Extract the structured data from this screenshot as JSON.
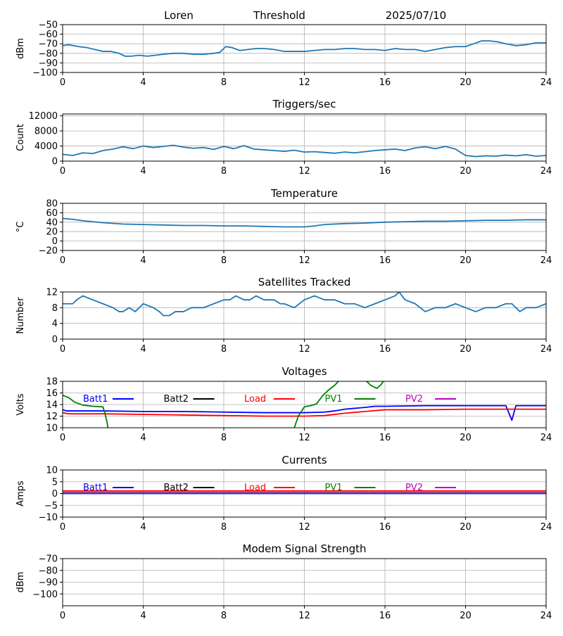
{
  "header": {
    "station": "Loren",
    "mode": "Threshold",
    "date": "2025/07/10"
  },
  "colors": {
    "series_default": "#1f77b4",
    "grid": "#b0b0b0",
    "Batt1": "#0000ff",
    "Batt2": "#000000",
    "Load": "#ff0000",
    "PV1": "#008000",
    "PV2": "#bf00bf"
  },
  "chart_data": [
    {
      "id": "signal",
      "type": "line",
      "title": "",
      "ylabel": "dBm",
      "ylim": [
        -100,
        -50
      ],
      "yticks": [
        -50,
        -60,
        -70,
        -80,
        -90,
        -100
      ],
      "xlim": [
        0,
        24
      ],
      "xticks": [
        0,
        4,
        8,
        12,
        16,
        20,
        24
      ],
      "grid": true,
      "series": [
        {
          "x": [
            0,
            0.3,
            0.8,
            1.2,
            1.6,
            2,
            2.4,
            2.8,
            3.1,
            3.4,
            3.8,
            4.2,
            4.6,
            5,
            5.5,
            6,
            6.5,
            7,
            7.5,
            7.8,
            8.1,
            8.4,
            8.8,
            9.2,
            9.6,
            10,
            10.5,
            11,
            11.5,
            12,
            12.5,
            13,
            13.5,
            14,
            14.5,
            15,
            15.5,
            16,
            16.5,
            17,
            17.5,
            18,
            18.5,
            19,
            19.5,
            20,
            20.4,
            20.8,
            21.2,
            21.6,
            22,
            22.5,
            23,
            23.5,
            24
          ],
          "y": [
            -72,
            -71,
            -73,
            -74,
            -76,
            -78,
            -78,
            -80,
            -83,
            -83,
            -82,
            -83,
            -82,
            -81,
            -80,
            -80,
            -81,
            -81,
            -80,
            -79,
            -73,
            -74,
            -77,
            -76,
            -75,
            -75,
            -76,
            -78,
            -78,
            -78,
            -77,
            -76,
            -76,
            -75,
            -75,
            -76,
            -76,
            -77,
            -75,
            -76,
            -76,
            -78,
            -76,
            -74,
            -73,
            -73,
            -70,
            -67,
            -67,
            -68,
            -70,
            -72,
            -71,
            -69,
            -69
          ]
        }
      ]
    },
    {
      "id": "triggers",
      "type": "line",
      "title": "Triggers/sec",
      "ylabel": "Count",
      "ylim": [
        0,
        12500
      ],
      "yticks": [
        0,
        4000,
        8000,
        12000
      ],
      "xlim": [
        0,
        24
      ],
      "xticks": [
        0,
        4,
        8,
        12,
        16,
        20,
        24
      ],
      "grid": true,
      "series": [
        {
          "x": [
            0,
            0.5,
            1,
            1.5,
            2,
            2.5,
            3,
            3.5,
            4,
            4.5,
            5,
            5.5,
            6,
            6.5,
            7,
            7.5,
            8,
            8.5,
            9,
            9.5,
            10,
            10.5,
            11,
            11.5,
            12,
            12.5,
            13,
            13.5,
            14,
            14.5,
            15,
            15.5,
            16,
            16.5,
            17,
            17.5,
            18,
            18.5,
            19,
            19.5,
            20,
            20.5,
            21,
            21.5,
            22,
            22.5,
            23,
            23.5,
            24
          ],
          "y": [
            1800,
            1500,
            2200,
            2000,
            2800,
            3200,
            3800,
            3300,
            4000,
            3600,
            3900,
            4200,
            3700,
            3400,
            3600,
            3100,
            3900,
            3300,
            4100,
            3200,
            3000,
            2800,
            2600,
            2900,
            2400,
            2500,
            2300,
            2100,
            2400,
            2200,
            2500,
            2800,
            3000,
            3200,
            2800,
            3500,
            3800,
            3300,
            3900,
            3200,
            1500,
            1200,
            1400,
            1300,
            1600,
            1400,
            1700,
            1300,
            1500
          ]
        }
      ]
    },
    {
      "id": "temperature",
      "type": "line",
      "title": "Temperature",
      "ylabel": "°C",
      "ylim": [
        -20,
        80
      ],
      "yticks": [
        80,
        60,
        40,
        20,
        0,
        -20
      ],
      "xlim": [
        0,
        24
      ],
      "xticks": [
        0,
        4,
        8,
        12,
        16,
        20,
        24
      ],
      "grid": true,
      "series": [
        {
          "x": [
            0,
            0.5,
            1,
            1.5,
            2,
            3,
            4,
            5,
            6,
            7,
            8,
            9,
            10,
            11,
            12,
            12.5,
            13,
            14,
            15,
            16,
            17,
            18,
            19,
            20,
            21,
            22,
            23,
            24
          ],
          "y": [
            48,
            46,
            43,
            41,
            39,
            36,
            35,
            34,
            33,
            33,
            32,
            32,
            31,
            30,
            30,
            32,
            35,
            37,
            38,
            40,
            41,
            42,
            42,
            43,
            44,
            44,
            45,
            45
          ]
        }
      ]
    },
    {
      "id": "satellites",
      "type": "line",
      "title": "Satellites Tracked",
      "ylabel": "Number",
      "ylim": [
        0,
        12
      ],
      "yticks": [
        0,
        4,
        8,
        12
      ],
      "xlim": [
        0,
        24
      ],
      "xticks": [
        0,
        4,
        8,
        12,
        16,
        20,
        24
      ],
      "grid": true,
      "series": [
        {
          "x": [
            0,
            0.5,
            0.7,
            1,
            1.5,
            2,
            2.5,
            2.8,
            3,
            3.3,
            3.6,
            4,
            4.5,
            4.8,
            5,
            5.3,
            5.6,
            6,
            6.4,
            6.8,
            7,
            7.5,
            8,
            8.3,
            8.6,
            9,
            9.3,
            9.6,
            10,
            10.5,
            10.8,
            11,
            11.5,
            12,
            12.5,
            13,
            13.5,
            14,
            14.5,
            15,
            15.5,
            16,
            16.5,
            16.7,
            17,
            17.5,
            18,
            18.5,
            19,
            19.5,
            20,
            20.5,
            21,
            21.5,
            22,
            22.3,
            22.7,
            23,
            23.5,
            24
          ],
          "y": [
            9,
            9,
            10,
            11,
            10,
            9,
            8,
            7,
            7,
            8,
            7,
            9,
            8,
            7,
            6,
            6,
            7,
            7,
            8,
            8,
            8,
            9,
            10,
            10,
            11,
            10,
            10,
            11,
            10,
            10,
            9,
            9,
            8,
            10,
            11,
            10,
            10,
            9,
            9,
            8,
            9,
            10,
            11,
            12,
            10,
            9,
            7,
            8,
            8,
            9,
            8,
            7,
            8,
            8,
            9,
            9,
            7,
            8,
            8,
            9
          ]
        }
      ]
    },
    {
      "id": "voltages",
      "type": "line",
      "title": "Voltages",
      "ylabel": "Volts",
      "ylim": [
        10,
        18
      ],
      "yticks": [
        10,
        12,
        14,
        16,
        18
      ],
      "xlim": [
        0,
        24
      ],
      "xticks": [
        0,
        4,
        8,
        12,
        16,
        20,
        24
      ],
      "grid": true,
      "legend": [
        "Batt1",
        "Batt2",
        "Load",
        "PV1",
        "PV2"
      ],
      "series": [
        {
          "name": "Batt1",
          "x": [
            0,
            0.2,
            0.5,
            1,
            2,
            4,
            6,
            8,
            10,
            12,
            13,
            13.5,
            14,
            15,
            15.5,
            16,
            18,
            20,
            22,
            22.3,
            22.5,
            24
          ],
          "y": [
            13.1,
            12.9,
            12.9,
            12.9,
            12.9,
            12.8,
            12.8,
            12.7,
            12.6,
            12.6,
            12.7,
            12.9,
            13.2,
            13.5,
            13.7,
            13.7,
            13.8,
            13.8,
            13.8,
            11.3,
            13.8,
            13.8
          ]
        },
        {
          "name": "Load",
          "x": [
            0,
            0.3,
            1,
            2,
            4,
            6,
            8,
            10,
            12,
            13,
            14,
            15,
            16,
            18,
            20,
            22,
            24
          ],
          "y": [
            12.6,
            12.4,
            12.4,
            12.4,
            12.3,
            12.2,
            12.1,
            12.0,
            12.0,
            12.1,
            12.5,
            12.8,
            13.1,
            13.1,
            13.2,
            13.2,
            13.2
          ]
        },
        {
          "name": "PV1",
          "x": [
            0,
            0.3,
            0.6,
            1,
            1.5,
            2,
            2.1,
            2.2,
            2.3
          ],
          "y": [
            15.6,
            15.2,
            14.4,
            13.9,
            13.7,
            13.6,
            12.5,
            11.0,
            9.0
          ]
        },
        {
          "name": "PV1",
          "x": [
            11.4,
            11.7,
            12,
            12.3,
            12.6,
            12.9,
            13.2,
            13.5,
            13.8
          ],
          "y": [
            9.0,
            12.0,
            13.6,
            13.8,
            14.1,
            15.5,
            16.5,
            17.3,
            18.4
          ]
        },
        {
          "name": "PV1",
          "x": [
            15.0,
            15.3,
            15.6,
            15.8,
            16.0
          ],
          "y": [
            18.3,
            17.3,
            16.8,
            17.4,
            18.4
          ]
        }
      ]
    },
    {
      "id": "currents",
      "type": "line",
      "title": "Currents",
      "ylabel": "Amps",
      "ylim": [
        -10,
        10
      ],
      "yticks": [
        10,
        5,
        0,
        -5,
        -10
      ],
      "xlim": [
        0,
        24
      ],
      "xticks": [
        0,
        4,
        8,
        12,
        16,
        20,
        24
      ],
      "grid": true,
      "legend": [
        "Batt1",
        "Batt2",
        "Load",
        "PV1",
        "PV2"
      ],
      "series": [
        {
          "name": "PV1",
          "x": [
            0,
            24
          ],
          "y": [
            0.4,
            0.4
          ]
        },
        {
          "name": "Batt1",
          "x": [
            0,
            24
          ],
          "y": [
            0.0,
            0.0
          ]
        },
        {
          "name": "PV2",
          "x": [
            0,
            24
          ],
          "y": [
            0.2,
            0.2
          ]
        },
        {
          "name": "Load",
          "x": [
            0,
            24
          ],
          "y": [
            1.1,
            1.1
          ]
        }
      ]
    },
    {
      "id": "modem",
      "type": "line",
      "title": "Modem Signal Strength",
      "ylabel": "dBm",
      "ylim": [
        -110,
        -70
      ],
      "yticks": [
        -70,
        -80,
        -90,
        -100
      ],
      "xlim": [
        0,
        24
      ],
      "xticks": [
        0,
        4,
        8,
        12,
        16,
        20,
        24
      ],
      "grid": true,
      "series": []
    }
  ]
}
